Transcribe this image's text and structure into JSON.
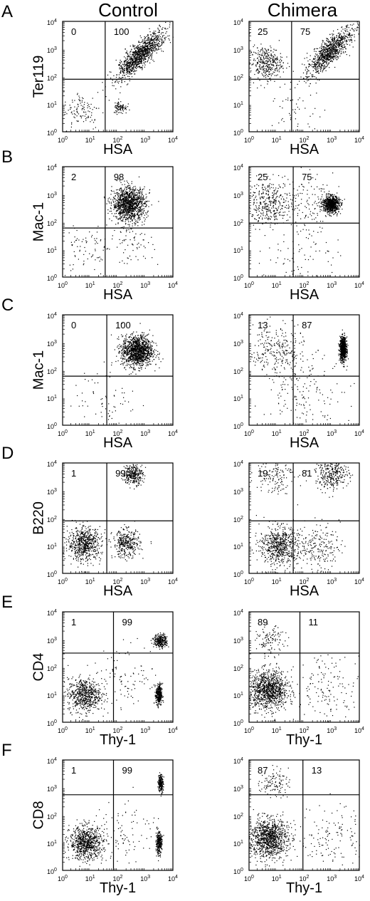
{
  "headers": {
    "left": "Control",
    "right": "Chimera"
  },
  "tick_base": "10",
  "tick_exponents": [
    "0",
    "1",
    "2",
    "3",
    "4"
  ],
  "rows": [
    {
      "letter": "A",
      "left": {
        "ylabel": "Ter119",
        "xlabel": "HSA",
        "quadrant_percent": {
          "upper_left": "0",
          "upper_right": "100"
        },
        "gates": {
          "x": 35,
          "y": 80
        }
      },
      "right": {
        "ylabel": "",
        "xlabel": "HSA",
        "quadrant_percent": {
          "upper_left": "25",
          "upper_right": "75"
        },
        "gates": {
          "x": 35,
          "y": 80
        }
      }
    },
    {
      "letter": "B",
      "left": {
        "ylabel": "Mac-1",
        "xlabel": "HSA",
        "quadrant_percent": {
          "upper_left": "2",
          "upper_right": "98"
        },
        "gates": {
          "x": 35,
          "y": 60
        }
      },
      "right": {
        "ylabel": "",
        "xlabel": "HSA",
        "quadrant_percent": {
          "upper_left": "25",
          "upper_right": "75"
        },
        "gates": {
          "x": 40,
          "y": 90
        }
      }
    },
    {
      "letter": "C",
      "left": {
        "ylabel": "Mac-1",
        "xlabel": "HSA",
        "quadrant_percent": {
          "upper_left": "0",
          "upper_right": "100"
        },
        "gates": {
          "x": 40,
          "y": 60
        }
      },
      "right": {
        "ylabel": "",
        "xlabel": "HSA",
        "quadrant_percent": {
          "upper_left": "13",
          "upper_right": "87"
        },
        "gates": {
          "x": 40,
          "y": 60
        }
      }
    },
    {
      "letter": "D",
      "left": {
        "ylabel": "B220",
        "xlabel": "HSA",
        "quadrant_percent": {
          "upper_left": "1",
          "upper_right": "99"
        },
        "gates": {
          "x": 40,
          "y": 80
        }
      },
      "right": {
        "ylabel": "",
        "xlabel": "HSA",
        "quadrant_percent": {
          "upper_left": "19",
          "upper_right": "81"
        },
        "gates": {
          "x": 40,
          "y": 80
        }
      }
    },
    {
      "letter": "E",
      "left": {
        "ylabel": "CD4",
        "xlabel": "Thy-1",
        "quadrant_percent": {
          "upper_left": "1",
          "upper_right": "99"
        },
        "gates": {
          "x": 70,
          "y": 320
        }
      },
      "right": {
        "ylabel": "",
        "xlabel": "Thy-1",
        "quadrant_percent": {
          "upper_left": "89",
          "upper_right": "11"
        },
        "gates": {
          "x": 70,
          "y": 320
        }
      }
    },
    {
      "letter": "F",
      "left": {
        "ylabel": "CD8",
        "xlabel": "Thy-1",
        "quadrant_percent": {
          "upper_left": "1",
          "upper_right": "99"
        },
        "gates": {
          "x": 70,
          "y": 550
        }
      },
      "right": {
        "ylabel": "",
        "xlabel": "Thy-1",
        "quadrant_percent": {
          "upper_left": "87",
          "upper_right": "13"
        },
        "gates": {
          "x": 90,
          "y": 550
        }
      }
    }
  ],
  "chart_data": {
    "type": "scatter",
    "xlim": [
      1,
      10000
    ],
    "ylim": [
      1,
      10000
    ],
    "x_scale": "log",
    "y_scale": "log",
    "grid": false,
    "panels": [
      {
        "row": "A",
        "column": "Control",
        "xlabel": "HSA",
        "ylabel": "Ter119",
        "quadrant_gate": {
          "x": 35,
          "y": 80
        },
        "quadrant_percent": {
          "upper_left": 0,
          "upper_right": 100
        },
        "populations": [
          {
            "x": 600,
            "y": 600,
            "spread": 0.35,
            "weight": 0.8,
            "diagonal": true
          },
          {
            "x": 5,
            "y": 6,
            "spread": 0.35,
            "weight": 0.08
          },
          {
            "x": 120,
            "y": 8,
            "spread": 0.12,
            "weight": 0.06
          }
        ]
      },
      {
        "row": "A",
        "column": "Chimera",
        "xlabel": "HSA",
        "ylabel": "",
        "quadrant_gate": {
          "x": 35,
          "y": 80
        },
        "quadrant_percent": {
          "upper_left": 25,
          "upper_right": 75
        },
        "populations": [
          {
            "x": 4,
            "y": 320,
            "spread": 0.3,
            "weight": 0.25
          },
          {
            "x": 800,
            "y": 800,
            "spread": 0.35,
            "weight": 0.65,
            "diagonal": true
          },
          {
            "x": 50,
            "y": 6,
            "spread": 0.5,
            "weight": 0.04
          }
        ]
      },
      {
        "row": "B",
        "column": "Control",
        "xlabel": "HSA",
        "ylabel": "Mac-1",
        "quadrant_gate": {
          "x": 35,
          "y": 60
        },
        "quadrant_percent": {
          "upper_left": 2,
          "upper_right": 98
        },
        "populations": [
          {
            "x": 250,
            "y": 450,
            "spread": 0.3,
            "weight": 0.85
          },
          {
            "x": 8,
            "y": 10,
            "spread": 0.5,
            "weight": 0.06
          },
          {
            "x": 300,
            "y": 20,
            "spread": 0.4,
            "weight": 0.05
          }
        ]
      },
      {
        "row": "B",
        "column": "Chimera",
        "xlabel": "HSA",
        "ylabel": "",
        "quadrant_gate": {
          "x": 40,
          "y": 90
        },
        "quadrant_percent": {
          "upper_left": 25,
          "upper_right": 75
        },
        "populations": [
          {
            "x": 5,
            "y": 500,
            "spread": 0.4,
            "weight": 0.25
          },
          {
            "x": 900,
            "y": 450,
            "spread": 0.15,
            "weight": 0.55
          },
          {
            "x": 100,
            "y": 500,
            "spread": 0.5,
            "weight": 0.1
          },
          {
            "x": 100,
            "y": 10,
            "spread": 0.7,
            "weight": 0.06
          }
        ]
      },
      {
        "row": "C",
        "column": "Control",
        "xlabel": "HSA",
        "ylabel": "Mac-1",
        "quadrant_gate": {
          "x": 40,
          "y": 60
        },
        "quadrant_percent": {
          "upper_left": 0,
          "upper_right": 100
        },
        "populations": [
          {
            "x": 500,
            "y": 500,
            "spread": 0.28,
            "weight": 0.9
          },
          {
            "x": 40,
            "y": 10,
            "spread": 0.6,
            "weight": 0.05
          }
        ]
      },
      {
        "row": "C",
        "column": "Chimera",
        "xlabel": "HSA",
        "ylabel": "",
        "quadrant_gate": {
          "x": 40,
          "y": 60
        },
        "quadrant_percent": {
          "upper_left": 13,
          "upper_right": 87
        },
        "populations": [
          {
            "x": 2500,
            "y": 600,
            "spread": 0.13,
            "weight": 0.6,
            "vertical": true
          },
          {
            "x": 10,
            "y": 500,
            "spread": 0.5,
            "weight": 0.2
          },
          {
            "x": 100,
            "y": 15,
            "spread": 0.7,
            "weight": 0.12
          }
        ]
      },
      {
        "row": "D",
        "column": "Control",
        "xlabel": "HSA",
        "ylabel": "B220",
        "quadrant_gate": {
          "x": 40,
          "y": 80
        },
        "quadrant_percent": {
          "upper_left": 1,
          "upper_right": 99
        },
        "populations": [
          {
            "x": 350,
            "y": 4000,
            "spread": 0.18,
            "weight": 0.22
          },
          {
            "x": 6,
            "y": 12,
            "spread": 0.3,
            "weight": 0.45
          },
          {
            "x": 200,
            "y": 12,
            "spread": 0.25,
            "weight": 0.25
          }
        ]
      },
      {
        "row": "D",
        "column": "Chimera",
        "xlabel": "HSA",
        "ylabel": "",
        "quadrant_gate": {
          "x": 40,
          "y": 80
        },
        "quadrant_percent": {
          "upper_left": 19,
          "upper_right": 81
        },
        "populations": [
          {
            "x": 1000,
            "y": 4500,
            "spread": 0.3,
            "weight": 0.25
          },
          {
            "x": 8,
            "y": 4000,
            "spread": 0.35,
            "weight": 0.1
          },
          {
            "x": 12,
            "y": 10,
            "spread": 0.35,
            "weight": 0.45
          },
          {
            "x": 300,
            "y": 10,
            "spread": 0.4,
            "weight": 0.15
          }
        ]
      },
      {
        "row": "E",
        "column": "Control",
        "xlabel": "Thy-1",
        "ylabel": "CD4",
        "quadrant_gate": {
          "x": 70,
          "y": 320
        },
        "quadrant_percent": {
          "upper_left": 1,
          "upper_right": 99
        },
        "populations": [
          {
            "x": 3500,
            "y": 900,
            "spread": 0.12,
            "weight": 0.2
          },
          {
            "x": 3000,
            "y": 10,
            "spread": 0.12,
            "weight": 0.25,
            "vertical": true
          },
          {
            "x": 6,
            "y": 10,
            "spread": 0.3,
            "weight": 0.45
          },
          {
            "x": 200,
            "y": 50,
            "spread": 0.6,
            "weight": 0.07
          }
        ]
      },
      {
        "row": "E",
        "column": "Chimera",
        "xlabel": "Thy-1",
        "ylabel": "",
        "quadrant_gate": {
          "x": 70,
          "y": 320
        },
        "quadrant_percent": {
          "upper_left": 89,
          "upper_right": 11
        },
        "populations": [
          {
            "x": 5,
            "y": 15,
            "spread": 0.35,
            "weight": 0.75
          },
          {
            "x": 6,
            "y": 900,
            "spread": 0.25,
            "weight": 0.08
          },
          {
            "x": 800,
            "y": 20,
            "spread": 0.6,
            "weight": 0.1
          }
        ]
      },
      {
        "row": "F",
        "column": "Control",
        "xlabel": "Thy-1",
        "ylabel": "CD8",
        "quadrant_gate": {
          "x": 70,
          "y": 550
        },
        "quadrant_percent": {
          "upper_left": 1,
          "upper_right": 99
        },
        "populations": [
          {
            "x": 3500,
            "y": 1500,
            "spread": 0.1,
            "weight": 0.15,
            "vertical": true
          },
          {
            "x": 3000,
            "y": 10,
            "spread": 0.12,
            "weight": 0.2,
            "vertical": true
          },
          {
            "x": 7,
            "y": 10,
            "spread": 0.3,
            "weight": 0.55
          },
          {
            "x": 200,
            "y": 30,
            "spread": 0.6,
            "weight": 0.07
          }
        ]
      },
      {
        "row": "F",
        "column": "Chimera",
        "xlabel": "Thy-1",
        "ylabel": "",
        "quadrant_gate": {
          "x": 90,
          "y": 550
        },
        "quadrant_percent": {
          "upper_left": 87,
          "upper_right": 13
        },
        "populations": [
          {
            "x": 5,
            "y": 15,
            "spread": 0.35,
            "weight": 0.75
          },
          {
            "x": 8,
            "y": 1500,
            "spread": 0.25,
            "weight": 0.08
          },
          {
            "x": 1000,
            "y": 20,
            "spread": 0.6,
            "weight": 0.1
          }
        ]
      }
    ]
  }
}
